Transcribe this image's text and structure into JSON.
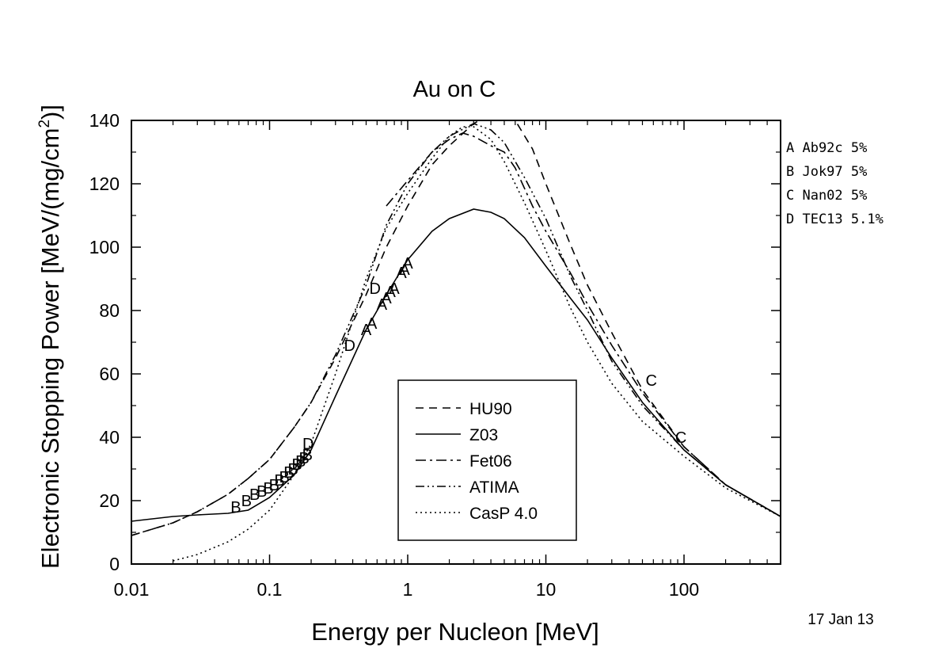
{
  "chart_data": {
    "type": "line",
    "title": "Au on C",
    "xlabel": "Energy per Nucleon [MeV]",
    "ylabel_main": "Electronic Stopping Power [MeV/(mg/cm",
    "ylabel_sup": "2",
    "ylabel_end": ")]",
    "x_scale": "log",
    "xlim": [
      0.01,
      500
    ],
    "ylim": [
      0,
      140
    ],
    "x_ticks": [
      {
        "value": 0.01,
        "label": "0.01"
      },
      {
        "value": 0.1,
        "label": "0.1"
      },
      {
        "value": 1,
        "label": "1"
      },
      {
        "value": 10,
        "label": "10"
      },
      {
        "value": 100,
        "label": "100"
      }
    ],
    "y_ticks": [
      {
        "value": 0,
        "label": "0"
      },
      {
        "value": 20,
        "label": "20"
      },
      {
        "value": 40,
        "label": "40"
      },
      {
        "value": 60,
        "label": "60"
      },
      {
        "value": 80,
        "label": "80"
      },
      {
        "value": 100,
        "label": "100"
      },
      {
        "value": 120,
        "label": "120"
      },
      {
        "value": 140,
        "label": "140"
      }
    ],
    "legend_position": "bottom-center",
    "series": [
      {
        "name": "HU90",
        "dash": "dash",
        "x": [
          0.01,
          0.02,
          0.03,
          0.05,
          0.07,
          0.1,
          0.15,
          0.2,
          0.3,
          0.5,
          0.7,
          1,
          1.5,
          2,
          3,
          4,
          5,
          6,
          8,
          10,
          15,
          20,
          30,
          50,
          100,
          200,
          500
        ],
        "y": [
          9,
          13,
          16.5,
          22,
          27,
          33,
          43,
          51,
          65,
          85,
          100,
          113,
          126,
          132,
          139,
          142,
          142,
          140,
          131,
          120,
          101,
          88,
          73,
          55,
          37,
          25,
          15
        ]
      },
      {
        "name": "Z03",
        "dash": "solid",
        "x": [
          0.01,
          0.02,
          0.03,
          0.05,
          0.07,
          0.1,
          0.15,
          0.2,
          0.3,
          0.5,
          0.7,
          1,
          1.5,
          2,
          3,
          4,
          5,
          7,
          10,
          15,
          20,
          30,
          50,
          100,
          200,
          500
        ],
        "y": [
          13.5,
          15,
          15.5,
          16,
          17,
          21,
          28,
          36,
          53,
          74,
          85,
          96,
          105,
          109,
          112,
          111,
          109,
          103,
          94,
          84,
          77,
          65,
          51,
          36,
          25,
          15
        ]
      },
      {
        "name": "Fet06",
        "dash": "dashdot",
        "x": [
          0.7,
          1,
          1.5,
          2,
          2.5,
          3,
          4,
          5,
          6,
          8,
          10,
          15,
          20,
          30,
          50,
          100,
          200,
          500
        ],
        "y": [
          113,
          121,
          130,
          134,
          136,
          135,
          132,
          130,
          125,
          113,
          105,
          92,
          82,
          69,
          54,
          37,
          25,
          15
        ]
      },
      {
        "name": "ATIMA",
        "dash": "dashdotdot",
        "x": [
          0.01,
          0.02,
          0.03,
          0.05,
          0.07,
          0.1,
          0.15,
          0.2,
          0.3,
          0.5,
          0.7,
          1,
          1.5,
          2,
          3,
          4,
          5,
          7,
          10,
          15,
          20,
          30,
          50,
          100,
          200,
          500
        ],
        "y": [
          9,
          13,
          16.5,
          22,
          27,
          33,
          43,
          51,
          66,
          88,
          107,
          120,
          130,
          135,
          139,
          137,
          133,
          122,
          109,
          91,
          80,
          64,
          50,
          36,
          25,
          15
        ]
      },
      {
        "name": "CasP 4.0",
        "dash": "dotted",
        "x": [
          0.02,
          0.03,
          0.05,
          0.07,
          0.1,
          0.15,
          0.2,
          0.3,
          0.5,
          0.7,
          1,
          1.5,
          2,
          2.5,
          3,
          4,
          5,
          7,
          10,
          15,
          20,
          30,
          50,
          100,
          200,
          500
        ],
        "y": [
          1,
          3,
          7,
          11,
          17,
          28,
          38,
          60,
          90,
          106,
          117,
          128,
          135,
          138,
          138,
          134,
          127,
          114,
          99,
          81,
          70,
          57,
          45,
          34,
          24,
          15
        ]
      }
    ],
    "data_sets": [
      {
        "id": "A",
        "name": "Ab92c 5%"
      },
      {
        "id": "B",
        "name": "Jok97 5%"
      },
      {
        "id": "C",
        "name": "Nan02 5%"
      },
      {
        "id": "D",
        "name": "TEC13 5.1%"
      }
    ],
    "data_points": [
      {
        "m": "A",
        "x": 0.5,
        "y": 74
      },
      {
        "m": "A",
        "x": 0.55,
        "y": 76
      },
      {
        "m": "A",
        "x": 0.65,
        "y": 82
      },
      {
        "m": "A",
        "x": 0.7,
        "y": 84
      },
      {
        "m": "A",
        "x": 0.75,
        "y": 86
      },
      {
        "m": "A",
        "x": 0.8,
        "y": 87
      },
      {
        "m": "A",
        "x": 0.9,
        "y": 92
      },
      {
        "m": "A",
        "x": 0.95,
        "y": 93
      },
      {
        "m": "A",
        "x": 1.0,
        "y": 95
      },
      {
        "m": "B",
        "x": 0.057,
        "y": 18
      },
      {
        "m": "B",
        "x": 0.068,
        "y": 20
      },
      {
        "m": "B",
        "x": 0.078,
        "y": 22
      },
      {
        "m": "B",
        "x": 0.088,
        "y": 23
      },
      {
        "m": "B",
        "x": 0.098,
        "y": 24
      },
      {
        "m": "B",
        "x": 0.108,
        "y": 25
      },
      {
        "m": "B",
        "x": 0.118,
        "y": 26.5
      },
      {
        "m": "B",
        "x": 0.128,
        "y": 27.5
      },
      {
        "m": "B",
        "x": 0.138,
        "y": 29
      },
      {
        "m": "B",
        "x": 0.148,
        "y": 30
      },
      {
        "m": "B",
        "x": 0.158,
        "y": 31.5
      },
      {
        "m": "B",
        "x": 0.168,
        "y": 32.5
      },
      {
        "m": "B",
        "x": 0.178,
        "y": 33.5
      },
      {
        "m": "B",
        "x": 0.188,
        "y": 34.5
      },
      {
        "m": "C",
        "x": 58,
        "y": 58
      },
      {
        "m": "C",
        "x": 95,
        "y": 40
      },
      {
        "m": "D",
        "x": 0.19,
        "y": 38
      },
      {
        "m": "D",
        "x": 0.38,
        "y": 69
      },
      {
        "m": "D",
        "x": 0.58,
        "y": 87
      }
    ]
  },
  "footer": {
    "date": "17 Jan 13"
  }
}
